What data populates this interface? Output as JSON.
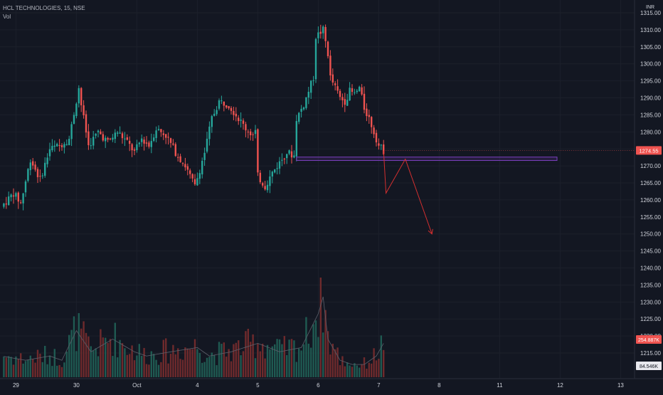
{
  "header": {
    "symbol": "HCL TECHNOLOGIES, 15, NSE",
    "vol_label": "Vol"
  },
  "currency": "INR",
  "colors": {
    "bg": "#131722",
    "up": "#26a69a",
    "down": "#ef5350",
    "vol_up": "#1f5a52",
    "vol_down": "#6e2a2c",
    "text": "#b2b5be",
    "axis_text": "#d1d4dc",
    "zone": "#7b3fbf",
    "projection": "#d32f2f",
    "price_tag": "#ef5350",
    "vol_ma": "#5d606b"
  },
  "chart_data": {
    "type": "candlestick",
    "y_axis": {
      "min": 1212.5,
      "max": 1315,
      "ticks": [
        "1315.00",
        "1310.00",
        "1305.00",
        "1300.00",
        "1295.00",
        "1290.00",
        "1285.00",
        "1280.00",
        "1275.00",
        "1270.00",
        "1265.00",
        "1260.00",
        "1255.00",
        "1250.00",
        "1245.00",
        "1240.00",
        "1235.00",
        "1230.00",
        "1225.00",
        "1220.00",
        "1215.00"
      ]
    },
    "x_axis": {
      "ticks": [
        {
          "label": "29",
          "bar": 6
        },
        {
          "label": "30",
          "bar": 31
        },
        {
          "label": "Oct",
          "bar": 56
        },
        {
          "label": "4",
          "bar": 81
        },
        {
          "label": "5",
          "bar": 106
        },
        {
          "label": "6",
          "bar": 131
        },
        {
          "label": "7",
          "bar": 156
        },
        {
          "label": "8",
          "bar": 181
        },
        {
          "label": "11",
          "bar": 206
        },
        {
          "label": "12",
          "bar": 231
        },
        {
          "label": "13",
          "bar": 256
        }
      ]
    },
    "close_keypoints": [
      [
        0,
        1258
      ],
      [
        5,
        1262
      ],
      [
        8,
        1259
      ],
      [
        12,
        1272
      ],
      [
        16,
        1266
      ],
      [
        20,
        1275
      ],
      [
        24,
        1276
      ],
      [
        28,
        1278
      ],
      [
        32,
        1293
      ],
      [
        33,
        1288
      ],
      [
        36,
        1276
      ],
      [
        40,
        1280
      ],
      [
        44,
        1277
      ],
      [
        48,
        1280
      ],
      [
        52,
        1277
      ],
      [
        55,
        1274
      ],
      [
        58,
        1278
      ],
      [
        61,
        1276
      ],
      [
        64,
        1281
      ],
      [
        68,
        1279
      ],
      [
        72,
        1274
      ],
      [
        76,
        1270
      ],
      [
        80,
        1264
      ],
      [
        84,
        1274
      ],
      [
        87,
        1284
      ],
      [
        90,
        1289
      ],
      [
        94,
        1288
      ],
      [
        98,
        1284
      ],
      [
        101,
        1281
      ],
      [
        104,
        1279
      ],
      [
        105,
        1280
      ],
      [
        106,
        1267
      ],
      [
        109,
        1264
      ],
      [
        112,
        1268
      ],
      [
        115,
        1271
      ],
      [
        118,
        1274
      ],
      [
        121,
        1273
      ],
      [
        122,
        1284
      ],
      [
        125,
        1288
      ],
      [
        127,
        1292
      ],
      [
        129,
        1296
      ],
      [
        130,
        1308
      ],
      [
        133,
        1310
      ],
      [
        135,
        1303
      ],
      [
        136,
        1296
      ],
      [
        138,
        1293
      ],
      [
        140,
        1290
      ],
      [
        142,
        1289
      ],
      [
        144,
        1292
      ],
      [
        146,
        1291
      ],
      [
        148,
        1293
      ],
      [
        150,
        1287
      ],
      [
        152,
        1284
      ],
      [
        154,
        1280
      ],
      [
        156,
        1276
      ],
      [
        158,
        1274.5
      ]
    ],
    "volume_keypoints": [
      [
        0,
        0.25
      ],
      [
        10,
        0.2
      ],
      [
        20,
        0.25
      ],
      [
        25,
        0.2
      ],
      [
        31,
        0.55
      ],
      [
        37,
        0.3
      ],
      [
        46,
        0.45
      ],
      [
        55,
        0.3
      ],
      [
        60,
        0.25
      ],
      [
        70,
        0.3
      ],
      [
        81,
        0.35
      ],
      [
        86,
        0.25
      ],
      [
        95,
        0.3
      ],
      [
        106,
        0.4
      ],
      [
        115,
        0.3
      ],
      [
        124,
        0.35
      ],
      [
        131,
        0.75
      ],
      [
        133,
        0.95
      ],
      [
        135,
        0.45
      ],
      [
        140,
        0.2
      ],
      [
        145,
        0.15
      ],
      [
        150,
        0.15
      ],
      [
        155,
        0.25
      ],
      [
        158,
        0.4
      ]
    ],
    "support_zone": {
      "top": 1272.6,
      "bottom": 1271.6,
      "start_bar": 122
    },
    "projection": [
      [
        158,
        1274.5
      ],
      [
        159,
        1262
      ],
      [
        167,
        1272
      ],
      [
        178,
        1250
      ]
    ],
    "last_price": {
      "value": 1274.55,
      "label": "1274.55"
    },
    "volume_tags": {
      "volume": "254.887K",
      "ma": "84.546K"
    }
  }
}
